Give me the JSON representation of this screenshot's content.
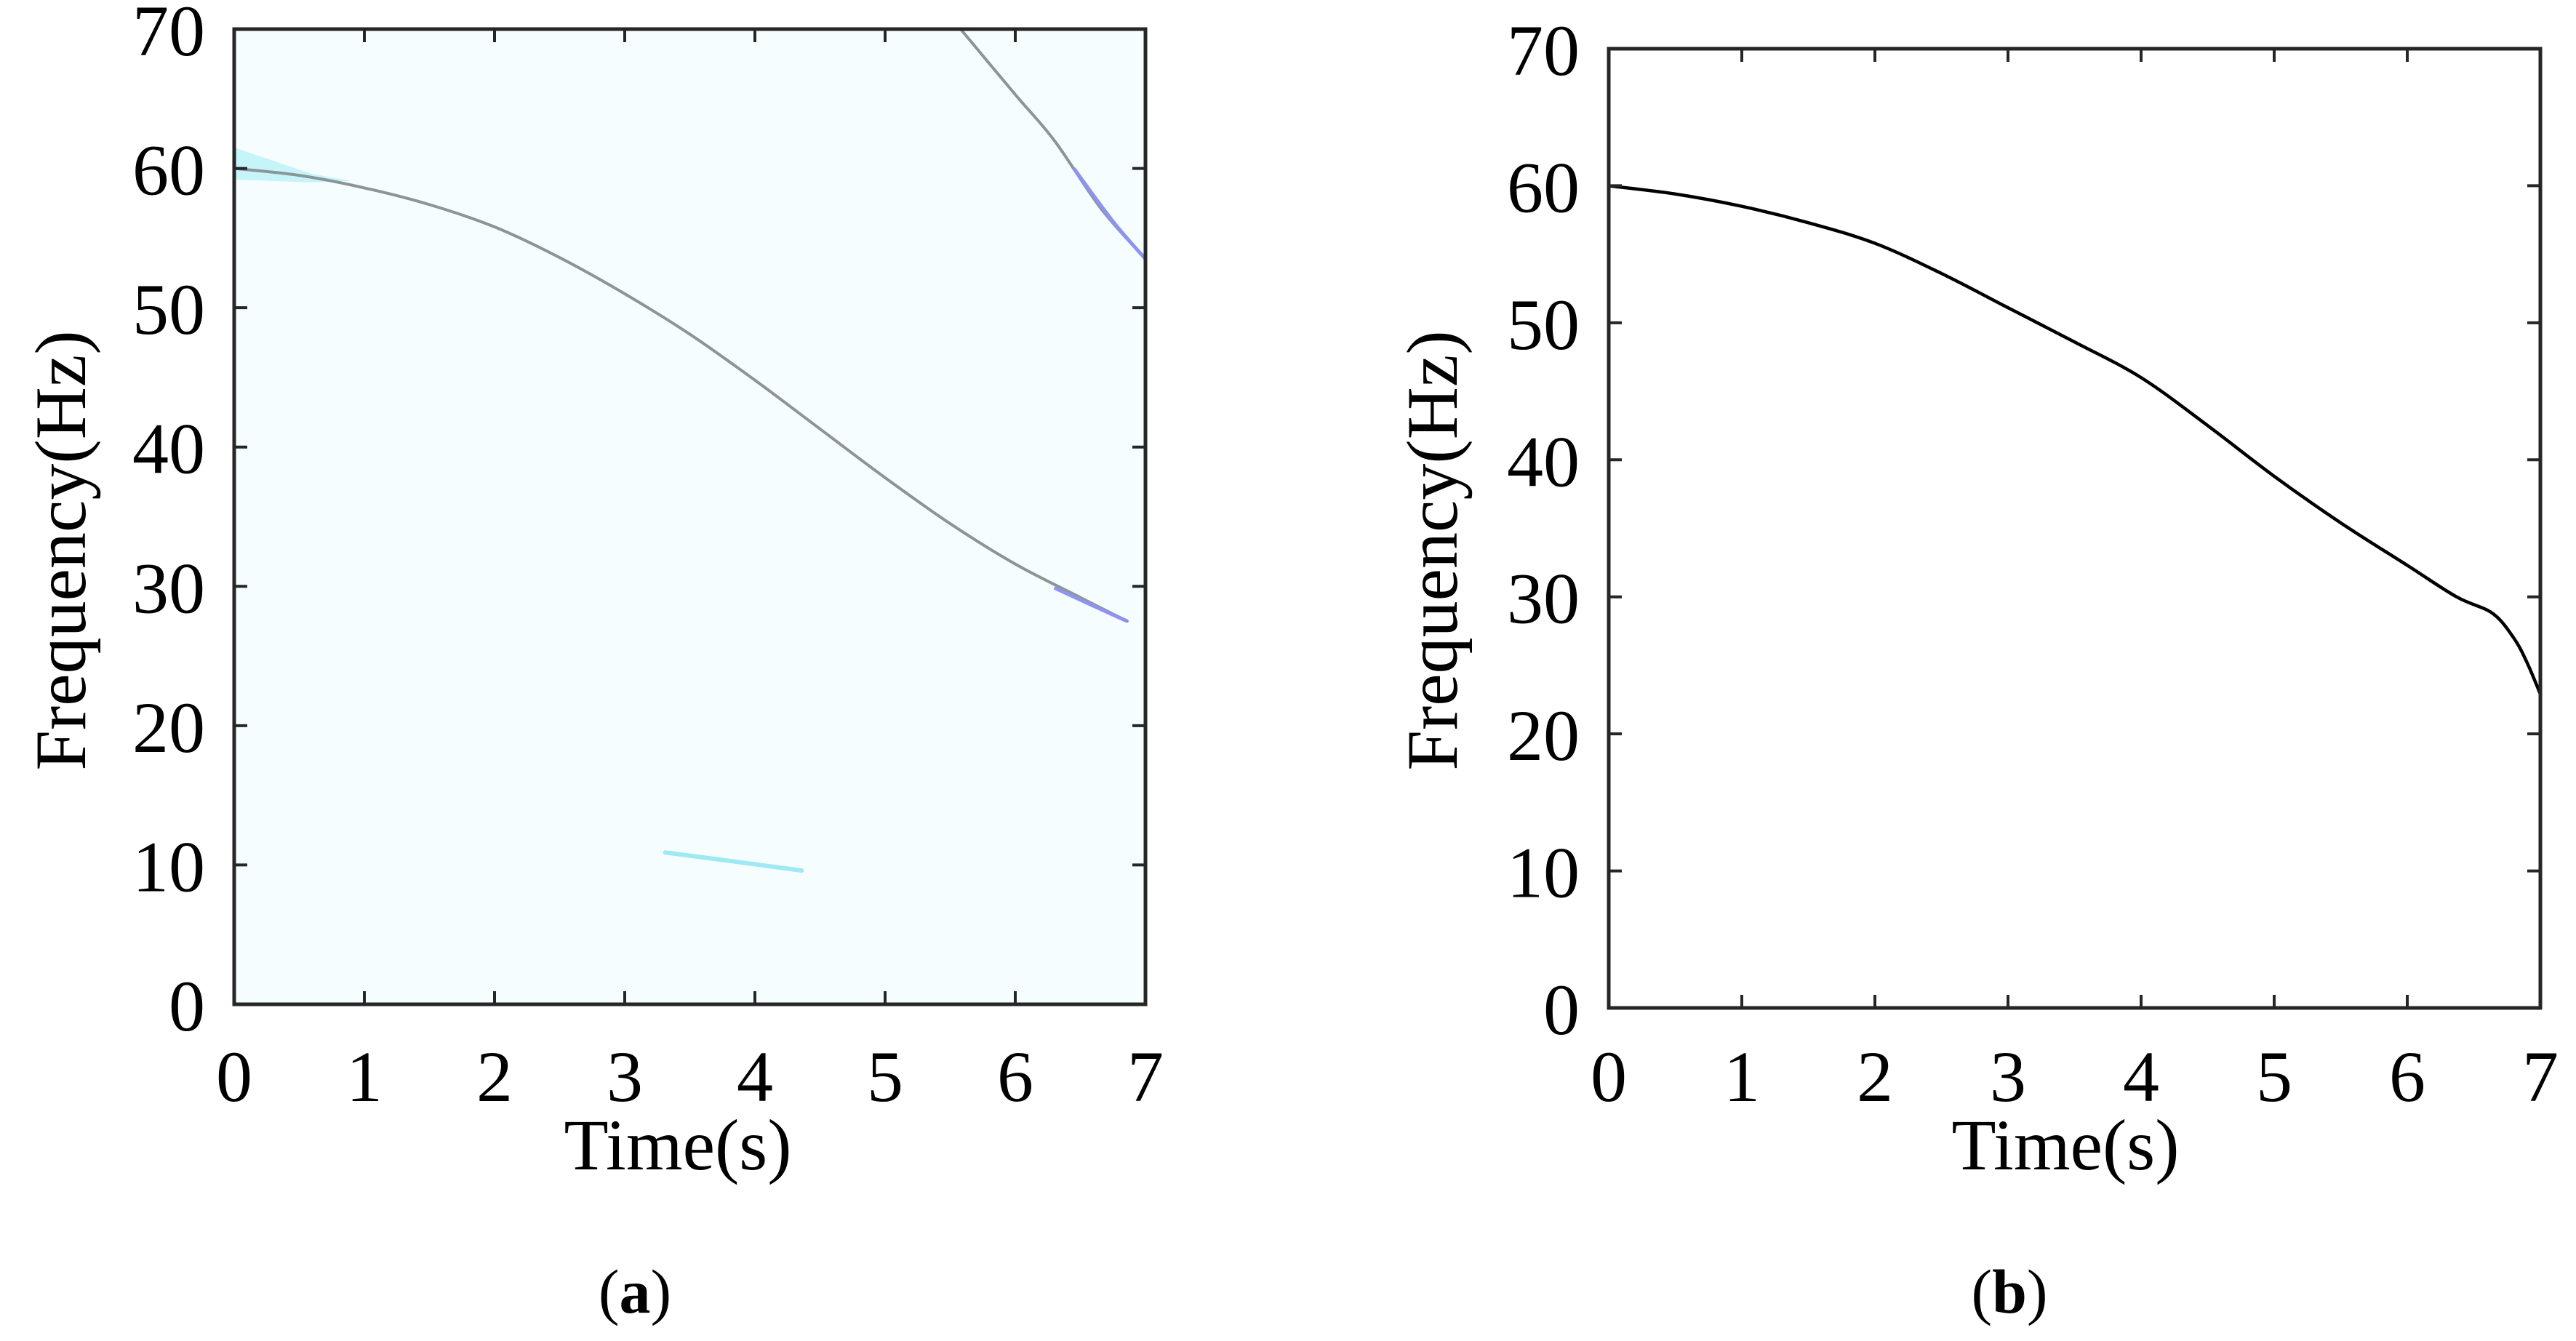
{
  "figure": {
    "panels": [
      {
        "id": "a",
        "caption_letter": "a",
        "xlabel": "Time(s)",
        "ylabel": "Frequency(Hz)",
        "xticks": [
          "0",
          "1",
          "2",
          "3",
          "4",
          "5",
          "6",
          "7"
        ],
        "yticks": [
          "0",
          "10",
          "20",
          "30",
          "40",
          "50",
          "60",
          "70"
        ],
        "background_color": "#f5fdfe",
        "line_color": "#8a9598"
      },
      {
        "id": "b",
        "caption_letter": "b",
        "xlabel": "Time(s)",
        "ylabel": "Frequency(Hz)",
        "xticks": [
          "0",
          "1",
          "2",
          "3",
          "4",
          "5",
          "6",
          "7"
        ],
        "yticks": [
          "0",
          "10",
          "20",
          "30",
          "40",
          "50",
          "60",
          "70"
        ],
        "background_color": "#ffffff",
        "line_color": "#000000"
      }
    ]
  },
  "chart_data": [
    {
      "panel": "a",
      "type": "heatmap",
      "title": "",
      "caption": "(a)",
      "xlabel": "Time(s)",
      "ylabel": "Frequency(Hz)",
      "xlim": [
        0,
        7
      ],
      "ylim": [
        0,
        70
      ],
      "xticks": [
        0,
        1,
        2,
        3,
        4,
        5,
        6,
        7
      ],
      "yticks": [
        0,
        10,
        20,
        30,
        40,
        50,
        60,
        70
      ],
      "grid": false,
      "legend": null,
      "description": "Time-frequency spectrogram with a dominant decreasing ridge, a second harmonic-like ridge in upper right, and a faint component near 10 Hz",
      "series": [
        {
          "name": "main ridge",
          "color": "#8a9598",
          "x": [
            0,
            0.5,
            1,
            1.5,
            2,
            2.5,
            3,
            3.5,
            4,
            4.5,
            5,
            5.5,
            6,
            6.5,
            6.86
          ],
          "y": [
            60.0,
            59.5,
            58.6,
            57.4,
            55.8,
            53.6,
            51.0,
            48.1,
            44.8,
            41.3,
            37.8,
            34.5,
            31.6,
            29.2,
            27.5
          ]
        },
        {
          "name": "upper ridge",
          "color": "#8a9598",
          "x": [
            5.58,
            6.0,
            6.3,
            6.66,
            7.0
          ],
          "y": [
            70.0,
            65.3,
            62.0,
            57.1,
            53.5
          ]
        },
        {
          "name": "faint low-frequency component",
          "color": "#9fe9f5",
          "x": [
            3.31,
            3.8,
            4.36
          ],
          "y": [
            10.9,
            10.3,
            9.6
          ]
        }
      ]
    },
    {
      "panel": "b",
      "type": "line",
      "title": "",
      "caption": "(b)",
      "xlabel": "Time(s)",
      "ylabel": "Frequency(Hz)",
      "xlim": [
        0,
        7
      ],
      "ylim": [
        0,
        70
      ],
      "xticks": [
        0,
        1,
        2,
        3,
        4,
        5,
        6,
        7
      ],
      "yticks": [
        0,
        10,
        20,
        30,
        40,
        50,
        60,
        70
      ],
      "grid": false,
      "legend": null,
      "series": [
        {
          "name": "instantaneous frequency",
          "color": "#000000",
          "x": [
            0,
            0.5,
            1,
            1.5,
            2,
            2.5,
            3,
            3.5,
            4,
            4.5,
            5,
            5.5,
            6,
            6.37,
            6.64,
            6.8,
            6.9,
            7.0
          ],
          "y": [
            60.0,
            59.4,
            58.5,
            57.3,
            55.8,
            53.6,
            51.1,
            48.6,
            46.0,
            42.5,
            38.8,
            35.4,
            32.3,
            30.0,
            28.8,
            27.0,
            25.2,
            22.9
          ]
        }
      ]
    }
  ]
}
